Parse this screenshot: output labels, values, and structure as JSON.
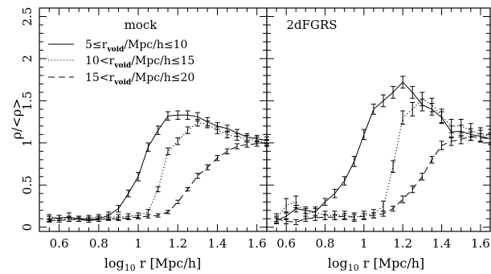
{
  "ylabel": "ρ/<ρ>",
  "legend": [
    {
      "style": "solid",
      "label": "5≤r_void/Mpc/h≤10"
    },
    {
      "style": "dotted",
      "label": "10<r_void/Mpc/h≤15"
    },
    {
      "style": "dashed",
      "label": "15<r_void/Mpc/h≤20"
    }
  ],
  "chart_data": [
    {
      "type": "line",
      "title": "mock",
      "xlabel": "log10 r [Mpc/h]",
      "ylabel": "ρ/<ρ>",
      "xlim": [
        0.5,
        1.65
      ],
      "ylim": [
        -0.05,
        2.6
      ],
      "xticks": [
        "0.6",
        "0.8",
        "1",
        "1.2",
        "1.4",
        "1.6"
      ],
      "yticks": [
        "0",
        "0.5",
        "1",
        "1.5",
        "2",
        "2.5"
      ],
      "series": [
        {
          "name": "5≤r_void/Mpc/h≤10",
          "style": "solid",
          "x": [
            0.55,
            0.6,
            0.65,
            0.7,
            0.75,
            0.8,
            0.85,
            0.9,
            0.95,
            1.0,
            1.05,
            1.1,
            1.15,
            1.2,
            1.25,
            1.3,
            1.35,
            1.4,
            1.45,
            1.5,
            1.55,
            1.6,
            1.65
          ],
          "y": [
            0.1,
            0.11,
            0.12,
            0.1,
            0.09,
            0.1,
            0.14,
            0.22,
            0.4,
            0.6,
            0.95,
            1.15,
            1.32,
            1.33,
            1.33,
            1.31,
            1.25,
            1.2,
            1.17,
            1.12,
            1.07,
            1.05,
            1.03
          ],
          "err": [
            0.03,
            0.03,
            0.05,
            0.03,
            0.03,
            0.03,
            0.04,
            0.04,
            0.04,
            0.05,
            0.05,
            0.05,
            0.05,
            0.05,
            0.05,
            0.05,
            0.05,
            0.04,
            0.04,
            0.04,
            0.04,
            0.04,
            0.04
          ]
        },
        {
          "name": "10<r_void/Mpc/h≤15",
          "style": "dotted",
          "x": [
            0.55,
            0.6,
            0.65,
            0.7,
            0.75,
            0.8,
            0.85,
            0.9,
            0.95,
            1.0,
            1.05,
            1.1,
            1.15,
            1.2,
            1.25,
            1.3,
            1.35,
            1.4,
            1.45,
            1.5,
            1.55,
            1.6,
            1.65
          ],
          "y": [
            0.12,
            0.11,
            0.1,
            0.1,
            0.11,
            0.12,
            0.12,
            0.12,
            0.13,
            0.14,
            0.18,
            0.45,
            0.9,
            1.02,
            1.15,
            1.24,
            1.22,
            1.15,
            1.1,
            1.07,
            1.05,
            1.03,
            1.0
          ],
          "err": [
            0.03,
            0.03,
            0.03,
            0.03,
            0.03,
            0.03,
            0.03,
            0.03,
            0.03,
            0.03,
            0.03,
            0.03,
            0.04,
            0.04,
            0.04,
            0.04,
            0.04,
            0.04,
            0.04,
            0.04,
            0.04,
            0.04,
            0.04
          ]
        },
        {
          "name": "15<r_void/Mpc/h≤20",
          "style": "dashed",
          "x": [
            0.55,
            0.6,
            0.65,
            0.7,
            0.75,
            0.8,
            0.85,
            0.9,
            0.95,
            1.0,
            1.05,
            1.1,
            1.15,
            1.2,
            1.25,
            1.3,
            1.35,
            1.4,
            1.45,
            1.5,
            1.55,
            1.6,
            1.65
          ],
          "y": [
            0.08,
            0.08,
            0.09,
            0.09,
            0.08,
            0.09,
            0.1,
            0.1,
            0.11,
            0.12,
            0.13,
            0.14,
            0.18,
            0.3,
            0.45,
            0.61,
            0.71,
            0.82,
            0.9,
            0.96,
            0.98,
            0.99,
            1.0
          ],
          "err": [
            0.02,
            0.02,
            0.02,
            0.02,
            0.02,
            0.02,
            0.02,
            0.02,
            0.02,
            0.02,
            0.02,
            0.02,
            0.02,
            0.02,
            0.02,
            0.03,
            0.03,
            0.03,
            0.03,
            0.03,
            0.03,
            0.03,
            0.03
          ]
        }
      ]
    },
    {
      "type": "line",
      "title": "2dFGRS",
      "xlabel": "log10 r [Mpc/h]",
      "ylabel": "",
      "xlim": [
        0.5,
        1.65
      ],
      "ylim": [
        -0.05,
        2.6
      ],
      "xticks": [
        "0.6",
        "0.8",
        "1",
        "1.2",
        "1.4",
        "1.6"
      ],
      "yticks": [
        "0",
        "0.5",
        "1",
        "1.5",
        "2",
        "2.5"
      ],
      "series": [
        {
          "name": "5≤r_void/Mpc/h≤10",
          "style": "solid",
          "x": [
            0.55,
            0.6,
            0.65,
            0.7,
            0.75,
            0.8,
            0.85,
            0.9,
            0.95,
            1.0,
            1.05,
            1.1,
            1.15,
            1.2,
            1.25,
            1.3,
            1.35,
            1.4,
            1.45,
            1.5,
            1.55,
            1.6,
            1.65
          ],
          "y": [
            0.08,
            0.13,
            0.22,
            0.2,
            0.18,
            0.3,
            0.4,
            0.55,
            0.78,
            1.1,
            1.4,
            1.5,
            1.6,
            1.72,
            1.6,
            1.45,
            1.4,
            1.3,
            1.13,
            1.14,
            1.1,
            1.08,
            1.05
          ],
          "err": [
            0.03,
            0.04,
            0.04,
            0.04,
            0.04,
            0.04,
            0.05,
            0.05,
            0.06,
            0.06,
            0.06,
            0.07,
            0.07,
            0.07,
            0.07,
            0.07,
            0.07,
            0.07,
            0.07,
            0.07,
            0.07,
            0.07,
            0.07
          ]
        },
        {
          "name": "10<r_void/Mpc/h≤15",
          "style": "dotted",
          "x": [
            0.55,
            0.6,
            0.65,
            0.7,
            0.75,
            0.8,
            0.85,
            0.9,
            0.95,
            1.0,
            1.05,
            1.1,
            1.15,
            1.2,
            1.25,
            1.3,
            1.35,
            1.4,
            1.45,
            1.5,
            1.55,
            1.6,
            1.65
          ],
          "y": [
            0.1,
            0.26,
            0.3,
            0.16,
            0.18,
            0.14,
            0.14,
            0.14,
            0.12,
            0.14,
            0.16,
            0.25,
            0.72,
            1.3,
            1.4,
            1.52,
            1.45,
            1.32,
            1.2,
            1.2,
            1.15,
            1.1,
            1.08
          ],
          "err": [
            0.06,
            0.08,
            0.07,
            0.06,
            0.06,
            0.05,
            0.05,
            0.05,
            0.05,
            0.05,
            0.05,
            0.06,
            0.07,
            0.08,
            0.08,
            0.08,
            0.08,
            0.08,
            0.08,
            0.08,
            0.08,
            0.08,
            0.08
          ]
        },
        {
          "name": "15<r_void/Mpc/h≤20",
          "style": "dashed",
          "x": [
            0.55,
            0.6,
            0.65,
            0.7,
            0.75,
            0.8,
            0.85,
            0.9,
            0.95,
            1.0,
            1.05,
            1.1,
            1.15,
            1.2,
            1.25,
            1.3,
            1.35,
            1.4,
            1.45,
            1.5,
            1.55,
            1.6,
            1.65
          ],
          "y": [
            0.1,
            0.07,
            0.06,
            0.1,
            0.11,
            0.12,
            0.12,
            0.13,
            0.12,
            0.13,
            0.14,
            0.16,
            0.22,
            0.33,
            0.45,
            0.6,
            0.8,
            0.97,
            1.02,
            1.04,
            1.08,
            1.06,
            1.05
          ],
          "err": [
            0.03,
            0.03,
            0.03,
            0.03,
            0.03,
            0.03,
            0.03,
            0.03,
            0.03,
            0.03,
            0.03,
            0.03,
            0.03,
            0.04,
            0.04,
            0.04,
            0.04,
            0.05,
            0.05,
            0.05,
            0.05,
            0.05,
            0.05
          ]
        }
      ]
    }
  ]
}
